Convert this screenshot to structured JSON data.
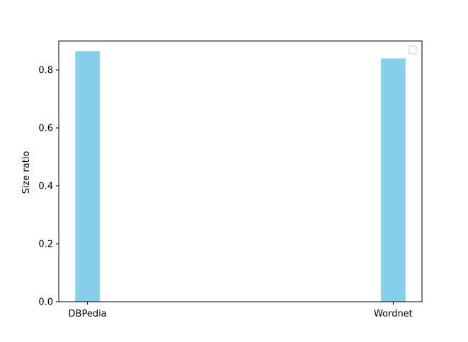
{
  "chart_data": {
    "type": "bar",
    "categories": [
      "DBPedia",
      "Wordnet"
    ],
    "values": [
      0.865,
      0.84
    ],
    "title": "",
    "xlabel": "",
    "ylabel": "Size ratio",
    "ylim": [
      0,
      0.9
    ],
    "yticks": [
      0.0,
      0.2,
      0.4,
      0.6,
      0.8
    ],
    "ytick_labels": [
      "0.0",
      "0.2",
      "0.4",
      "0.6",
      "0.8"
    ],
    "bar_color": "#87ceeb",
    "grid": false,
    "legend": {
      "placement": "top-right",
      "entries": []
    }
  }
}
